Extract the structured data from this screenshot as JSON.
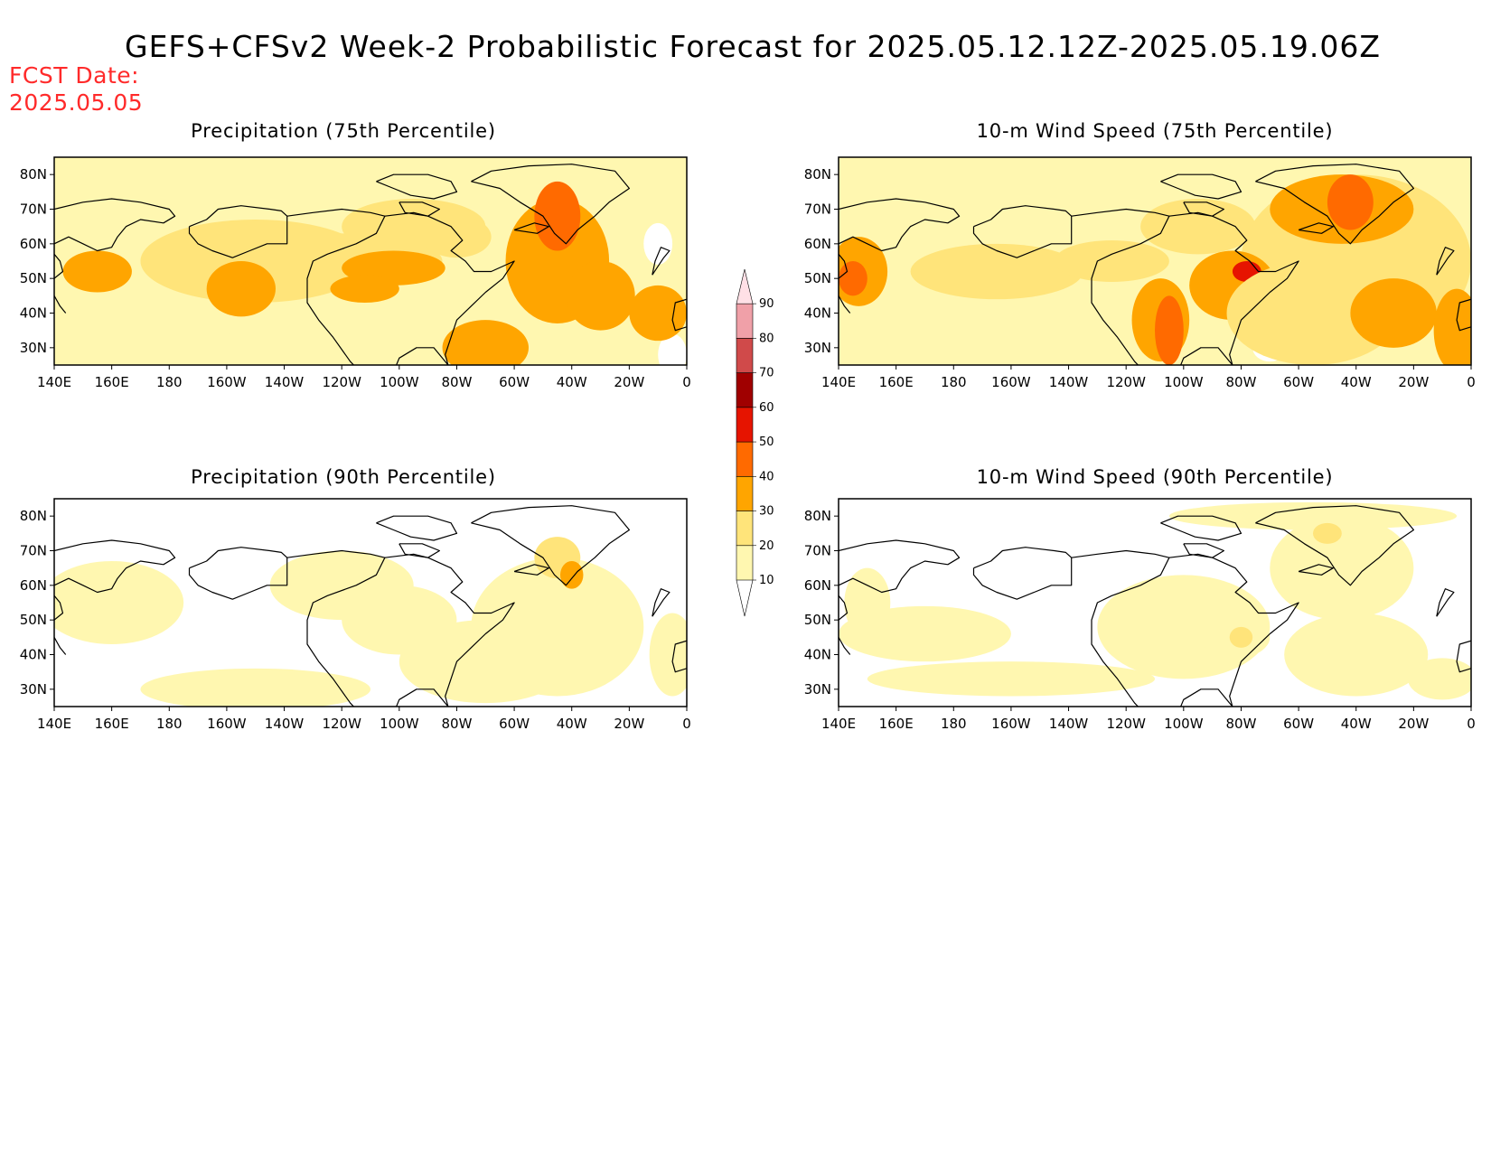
{
  "header": {
    "title": "GEFS+CFSv2 Week-2 Probabilistic Forecast for 2025.05.12.12Z-2025.05.19.06Z",
    "fcst_label": "FCST Date:",
    "fcst_date": "2025.05.05"
  },
  "x_ticks": [
    "140E",
    "160E",
    "180",
    "160W",
    "140W",
    "120W",
    "100W",
    "80W",
    "60W",
    "40W",
    "20W",
    "0"
  ],
  "y_ticks": [
    "80N",
    "70N",
    "60N",
    "50N",
    "40N",
    "30N"
  ],
  "panels": [
    {
      "title": "Precipitation (75th Percentile)",
      "intensity": "high"
    },
    {
      "title": "10-m Wind Speed (75th Percentile)",
      "intensity": "high"
    },
    {
      "title": "Precipitation (90th Percentile)",
      "intensity": "low"
    },
    {
      "title": "10-m Wind Speed (90th Percentile)",
      "intensity": "low"
    }
  ],
  "colorbar": {
    "levels": [
      "10",
      "20",
      "30",
      "40",
      "50",
      "60",
      "70",
      "80",
      "90"
    ],
    "colors": [
      "#fff7b0",
      "#ffe47a",
      "#ffa500",
      "#ff6a00",
      "#e61400",
      "#a00000",
      "#d04a4a",
      "#f0a0a8",
      "#ffe0e6"
    ]
  }
}
